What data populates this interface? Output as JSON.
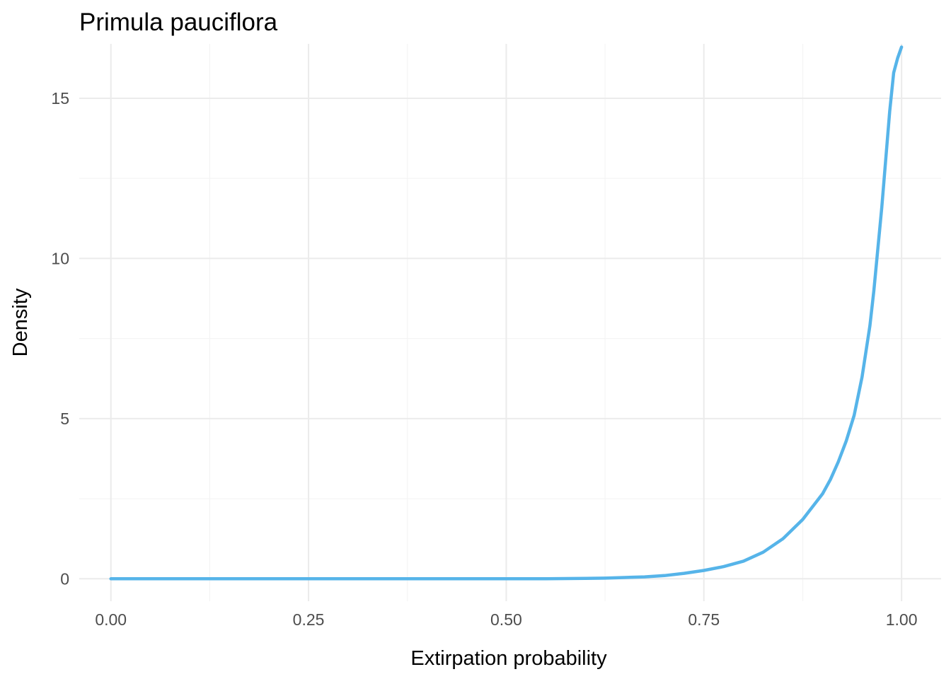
{
  "chart_data": {
    "type": "line",
    "title": "Primula pauciflora",
    "xlabel": "Extirpation probability",
    "ylabel": "Density",
    "xlim": [
      -0.04,
      1.05
    ],
    "ylim": [
      -0.7,
      16.7
    ],
    "x_ticks": [
      0,
      0.25,
      0.5,
      0.75,
      1
    ],
    "x_tick_labels": [
      "0.00",
      "0.25",
      "0.50",
      "0.75",
      "1.00"
    ],
    "x_minor_ticks": [
      0.125,
      0.375,
      0.625,
      0.875
    ],
    "y_ticks": [
      0,
      5,
      10,
      15
    ],
    "y_tick_labels": [
      "0",
      "5",
      "10",
      "15"
    ],
    "y_minor_ticks": [
      2.5,
      7.5,
      12.5
    ],
    "grid": true,
    "legend": "none",
    "line_color": "#56B4E9",
    "series": [
      {
        "x": [
          0,
          0.1,
          0.2,
          0.3,
          0.4,
          0.5,
          0.55,
          0.6,
          0.625,
          0.65,
          0.675,
          0.7,
          0.725,
          0.75,
          0.775,
          0.8,
          0.825,
          0.85,
          0.875,
          0.9,
          0.91,
          0.92,
          0.93,
          0.94,
          0.95,
          0.96,
          0.965,
          0.97,
          0.975,
          0.98,
          0.985,
          0.99,
          0.995,
          1.0
        ],
        "y": [
          0,
          0,
          0,
          0,
          0,
          0,
          0,
          0.01,
          0.02,
          0.04,
          0.06,
          0.1,
          0.17,
          0.26,
          0.38,
          0.55,
          0.83,
          1.25,
          1.85,
          2.65,
          3.1,
          3.65,
          4.3,
          5.1,
          6.3,
          7.9,
          9.0,
          10.3,
          11.6,
          13.1,
          14.6,
          15.8,
          16.25,
          16.6
        ]
      }
    ]
  }
}
